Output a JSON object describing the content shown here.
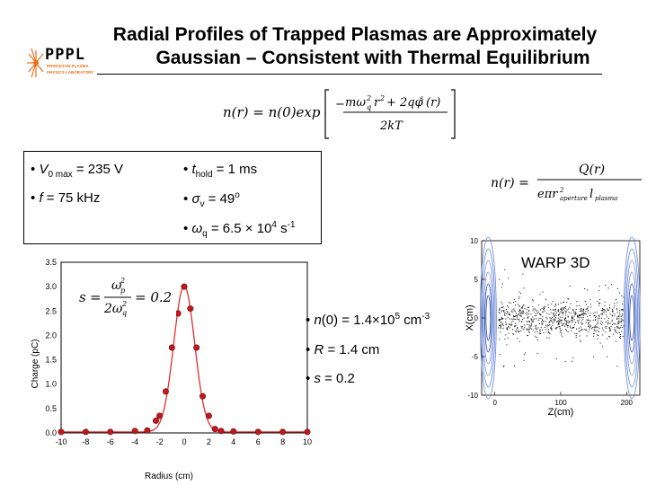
{
  "slide": {
    "title_line1": "Radial Profiles of Trapped Plasmas are Approximately",
    "title_line2": "Gaussian – Consistent with Thermal Equilibrium",
    "logo": {
      "text": "PPPL",
      "subtext1": "PRINCETON PLASMA",
      "subtext2": "PHYSICS LABORATORY"
    },
    "params": {
      "v0": {
        "bullet": "•",
        "var": "V",
        "sub": "0 max",
        "rest": " = 235 V"
      },
      "f": {
        "bullet": "•",
        "var": "f",
        "rest": " = 75 kHz"
      },
      "thold": {
        "bullet": "•",
        "var": "t",
        "sub": "hold",
        "rest": " = 1 ms"
      },
      "sigma": {
        "bullet": "•",
        "var": "σ",
        "sub": "v",
        "rest": " = 49",
        "sup": "o"
      },
      "omega": {
        "bullet": "•",
        "var": "ω",
        "sub": "q",
        "rest": " = 6.5 × 10",
        "sup": "4",
        "rest2": " s",
        "sup2": "-1"
      }
    },
    "results": {
      "n0": {
        "bullet": "•",
        "var": "n",
        "rest": "(0) = 1.4×10",
        "sup": "5",
        "rest2": " cm",
        "sup2": "-3"
      },
      "R": {
        "bullet": "•",
        "var": "R",
        "rest": " = 1.4 cm"
      },
      "s": {
        "bullet": "•",
        "var": "s",
        "rest": " = 0.2"
      }
    },
    "warp_label": "WARP 3D"
  },
  "chart_data": [
    {
      "type": "scatter",
      "title": "",
      "xlabel": "Radius (cm)",
      "ylabel": "Charge (pC)",
      "xlim": [
        -10,
        10
      ],
      "ylim": [
        0,
        3.5
      ],
      "xticks": [
        -10,
        -8,
        -6,
        -4,
        -2,
        0,
        2,
        4,
        6,
        8,
        10
      ],
      "yticks": [
        0.0,
        0.5,
        1.0,
        1.5,
        2.0,
        2.5,
        3.0,
        3.5
      ],
      "grid": true,
      "annotation": {
        "lhs": "s",
        "eq": "=",
        "num": "ω",
        "num_sub": "p",
        "num_sup": "2",
        "den": "2ω",
        "den_sub": "q",
        "den_sup": "2",
        "rhs": "= 0.2"
      },
      "series": [
        {
          "points": [
            [
              -10,
              0.02
            ],
            [
              -8,
              0.02
            ],
            [
              -6,
              0.02
            ],
            [
              -4,
              0.04
            ],
            [
              -3,
              0.05
            ],
            [
              -2.3,
              0.25
            ],
            [
              -2,
              0.35
            ],
            [
              -1.5,
              0.85
            ],
            [
              -1,
              1.75
            ],
            [
              -0.5,
              2.45
            ],
            [
              0,
              3.0
            ],
            [
              0.5,
              2.55
            ],
            [
              1,
              1.75
            ],
            [
              1.5,
              0.75
            ],
            [
              2,
              0.35
            ],
            [
              2.5,
              0.08
            ],
            [
              3,
              0.04
            ],
            [
              4,
              0.03
            ],
            [
              6,
              0.02
            ],
            [
              8,
              0.02
            ],
            [
              10,
              0.02
            ]
          ],
          "color": "#c0181c"
        },
        {
          "fit": "gaussian",
          "amplitude": 3.0,
          "center": 0,
          "sigma": 0.85,
          "color": "#e03030"
        }
      ]
    },
    {
      "type": "scatter",
      "title": "",
      "xlabel": "Z(cm)",
      "ylabel": "X(cm)",
      "xlim": [
        -20,
        220
      ],
      "ylim": [
        -10,
        10
      ],
      "xticks": [
        0,
        100,
        200
      ],
      "yticks": [
        10,
        5,
        0,
        -5,
        -10
      ],
      "series": [
        {
          "description_free": true,
          "color": "#000000"
        }
      ]
    }
  ]
}
